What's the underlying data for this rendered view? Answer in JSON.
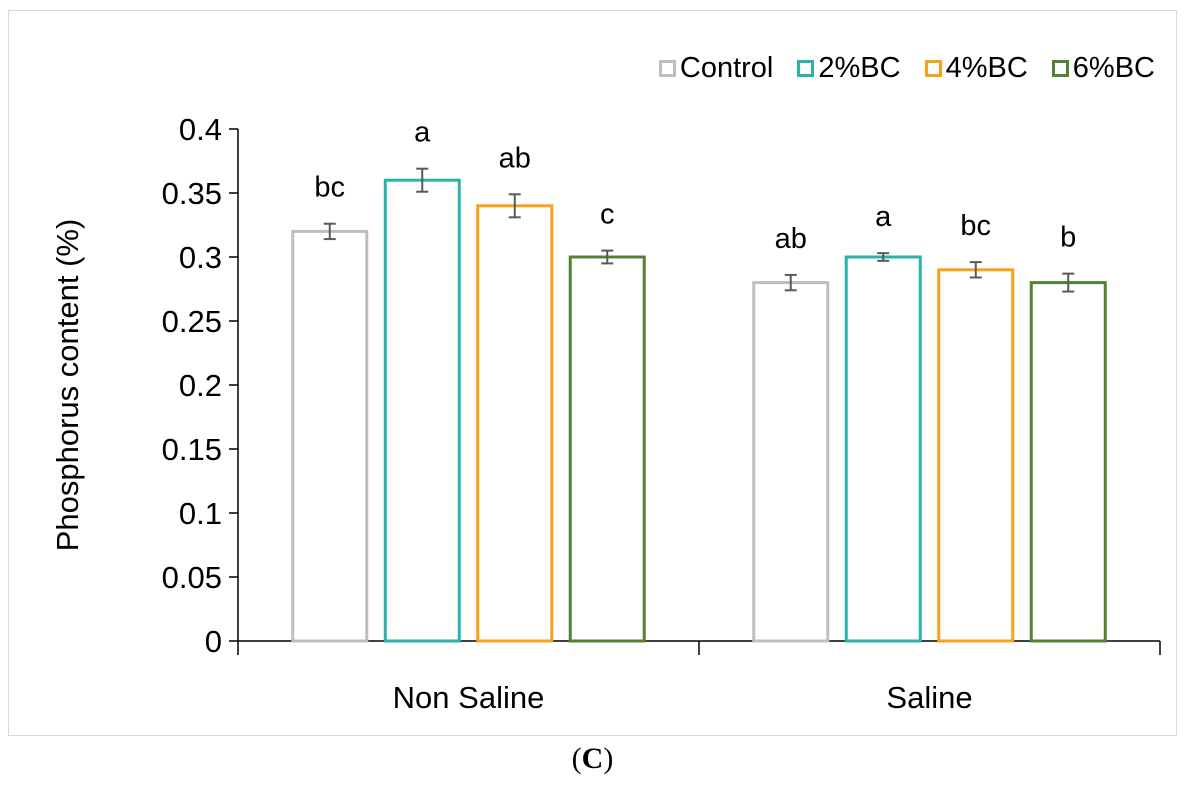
{
  "chart_data": {
    "type": "bar",
    "categories": [
      "Non Saline",
      "Saline"
    ],
    "series": [
      {
        "name": "Control",
        "color": "#bfbfbf",
        "values": [
          0.32,
          0.28
        ],
        "errors": [
          0.006,
          0.006
        ],
        "letters": [
          "bc",
          "ab"
        ]
      },
      {
        "name": "2%BC",
        "color": "#2ab3ac",
        "values": [
          0.36,
          0.3
        ],
        "errors": [
          0.009,
          0.003
        ],
        "letters": [
          "a",
          "a"
        ]
      },
      {
        "name": "4%BC",
        "color": "#f5a21d",
        "values": [
          0.34,
          0.29
        ],
        "errors": [
          0.009,
          0.006
        ],
        "letters": [
          "ab",
          "bc"
        ]
      },
      {
        "name": "6%BC",
        "color": "#548235",
        "values": [
          0.3,
          0.28
        ],
        "errors": [
          0.005,
          0.007
        ],
        "letters": [
          "c",
          "b"
        ]
      }
    ],
    "ylabel": "Phosphorus content (%)",
    "xlabel": "",
    "ylim": [
      0,
      0.4
    ],
    "yticks": [
      "0",
      "0.05",
      "0.1",
      "0.15",
      "0.2",
      "0.25",
      "0.3",
      "0.35",
      "0.4"
    ],
    "grid": false,
    "legend_position": "top-right"
  },
  "caption": {
    "open": "(",
    "letter": "C",
    "close": ")"
  }
}
